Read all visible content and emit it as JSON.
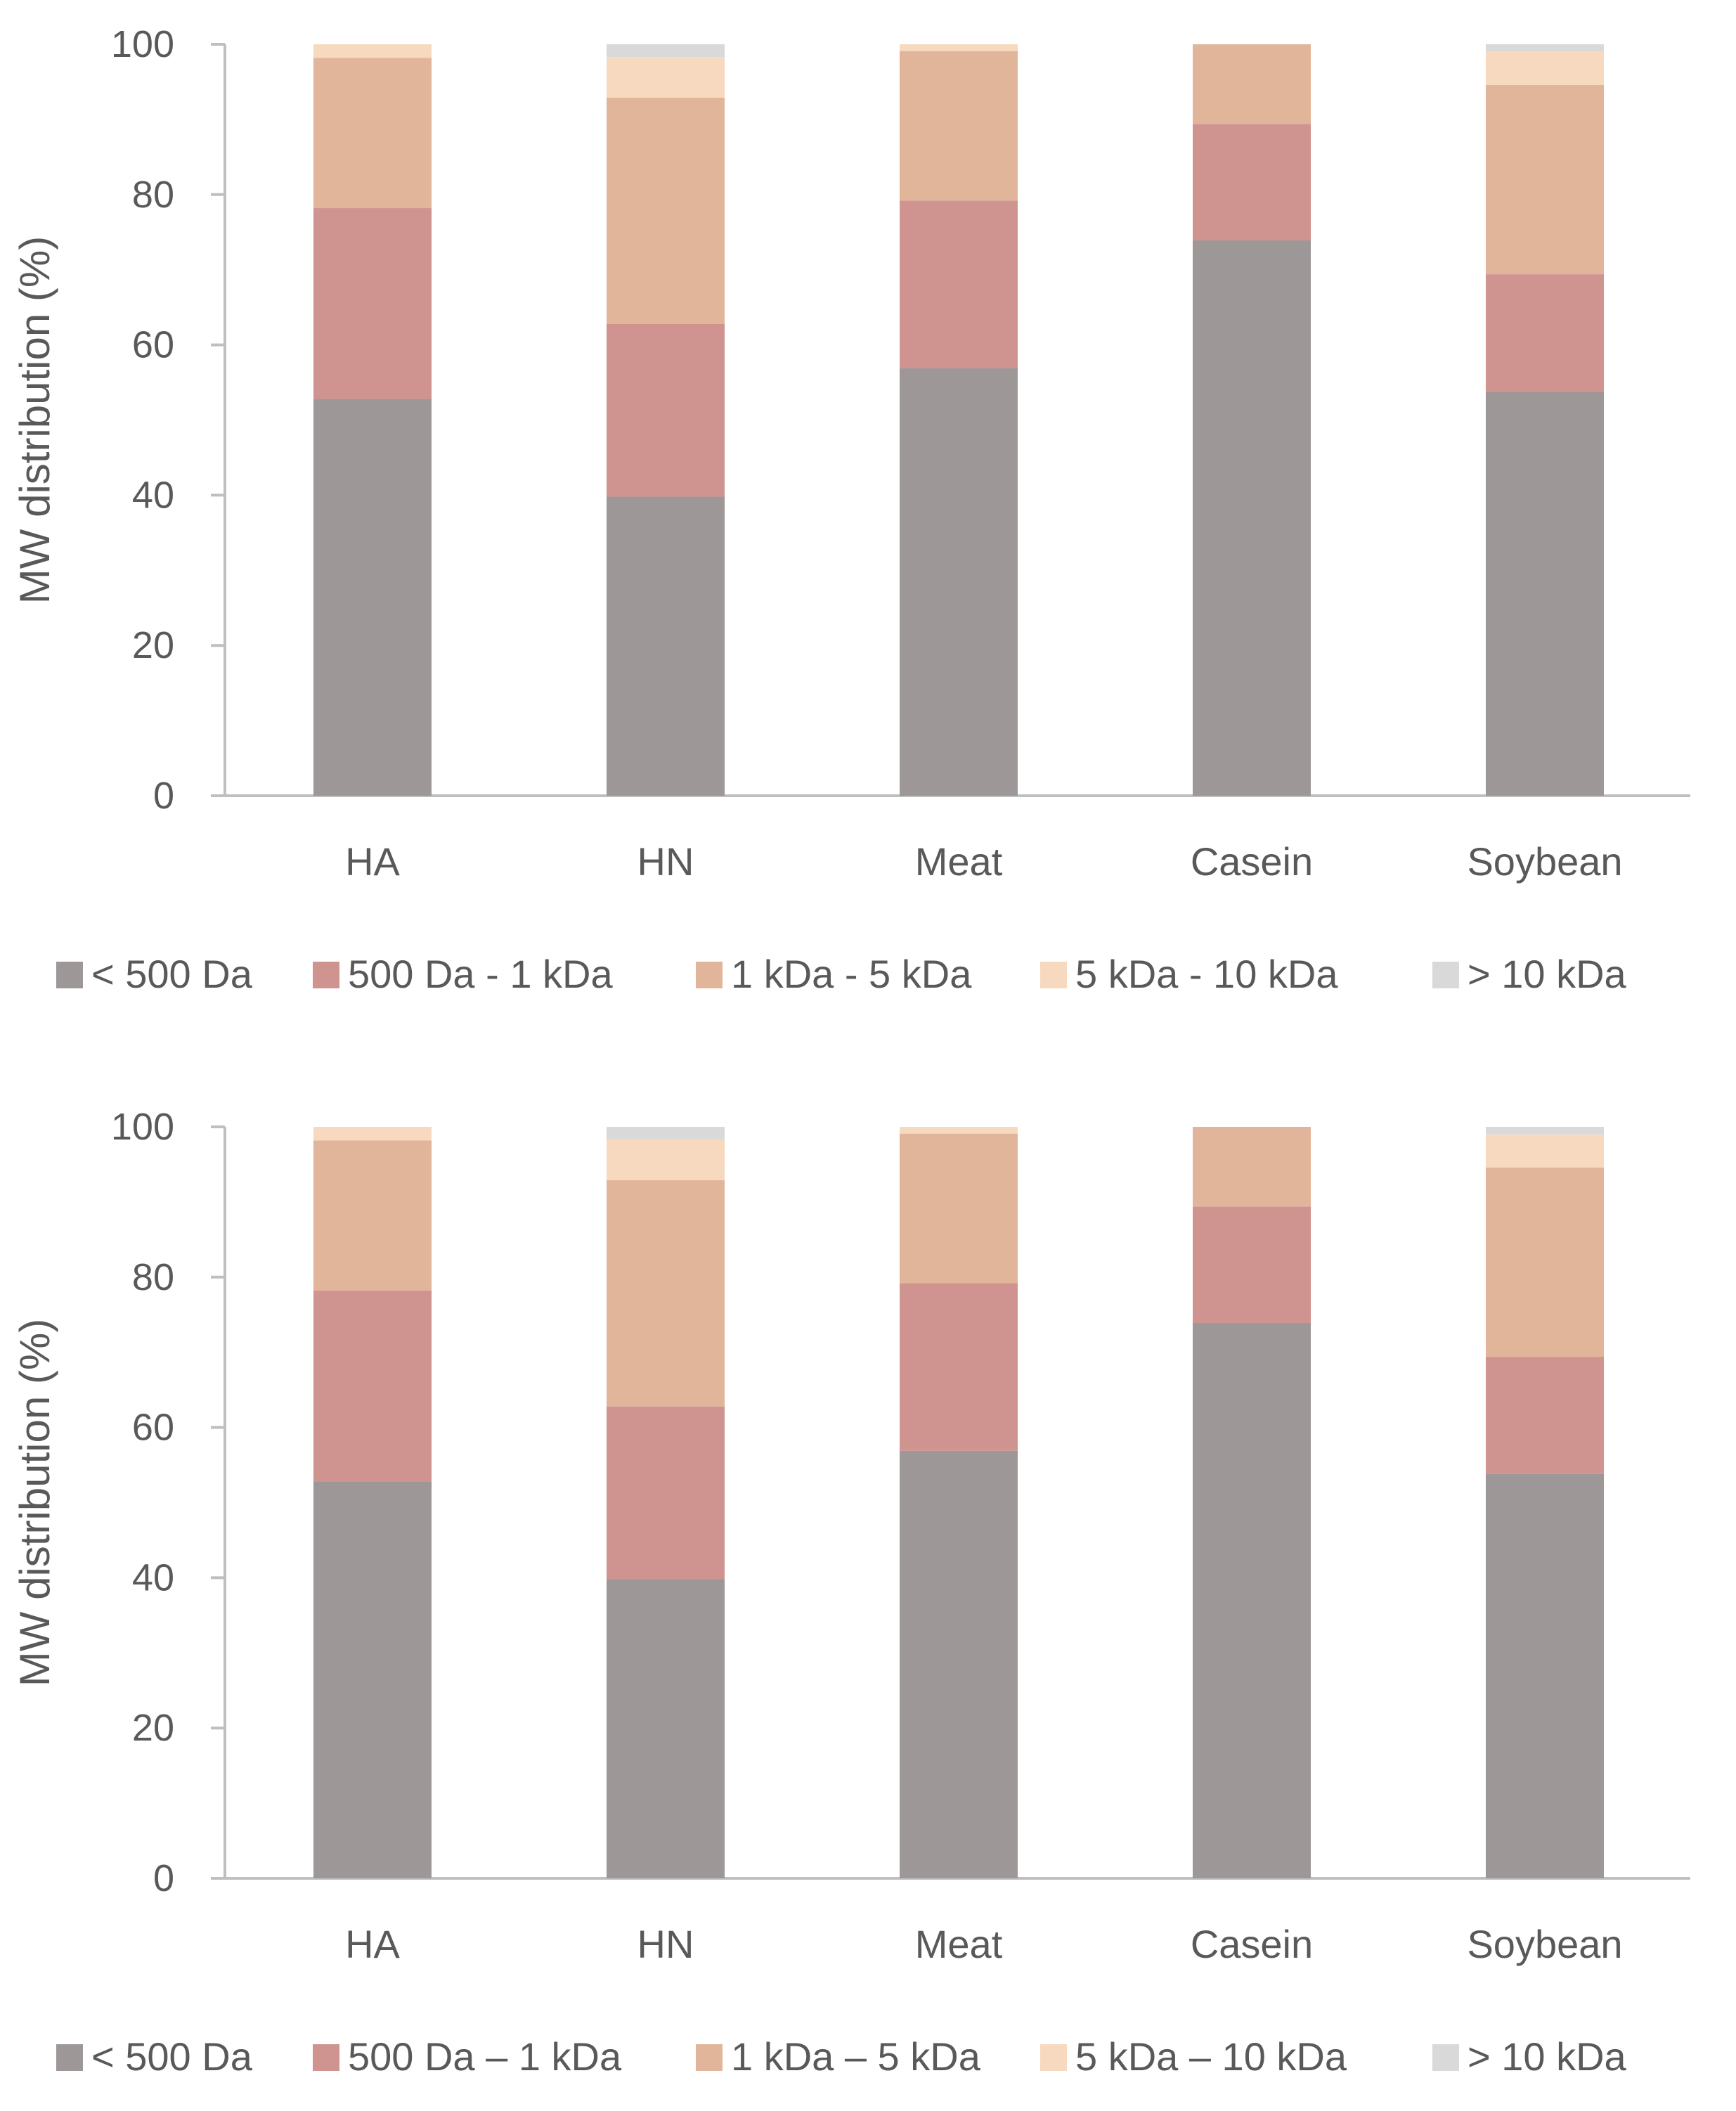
{
  "chart_data": [
    {
      "type": "bar",
      "stacked": true,
      "title": "",
      "xlabel": "",
      "ylabel": "MW distribution (%)",
      "ylim": [
        0,
        100
      ],
      "yticks": [
        "0",
        "20",
        "40",
        "60",
        "80",
        "100"
      ],
      "categories": [
        "HA",
        "HN",
        "Meat",
        "Casein",
        "Soybean"
      ],
      "grid": false,
      "legend_position": "bottom",
      "series": [
        {
          "name": "< 500 Da",
          "color": "#9e9797",
          "values": [
            52.8,
            39.8,
            56.9,
            73.9,
            53.8
          ]
        },
        {
          "name": "500 Da - 1 kDa",
          "color": "#cf9390",
          "values": [
            25.4,
            23.0,
            22.3,
            15.5,
            15.6
          ]
        },
        {
          "name": "1 kDa - 5 kDa",
          "color": "#e0b59a",
          "values": [
            20.0,
            30.1,
            19.9,
            10.6,
            25.2
          ]
        },
        {
          "name": "5 kDa - 10 kDa",
          "color": "#f6d9be",
          "values": [
            1.8,
            5.4,
            0.9,
            0.0,
            4.4
          ]
        },
        {
          "name": "> 10 kDa",
          "color": "#d9d9d9",
          "values": [
            0.0,
            1.7,
            0.0,
            0.0,
            1.0
          ]
        }
      ]
    },
    {
      "type": "bar",
      "stacked": true,
      "title": "",
      "xlabel": "",
      "ylabel": "MW distribution (%)",
      "ylim": [
        0,
        100
      ],
      "yticks": [
        "0",
        "20",
        "40",
        "60",
        "80",
        "100"
      ],
      "categories": [
        "HA",
        "HN",
        "Meat",
        "Casein",
        "Soybean"
      ],
      "grid": false,
      "legend_position": "bottom",
      "series": [
        {
          "name": "< 500 Da",
          "color": "#9e9797",
          "values": [
            52.8,
            39.8,
            56.9,
            73.9,
            53.8
          ]
        },
        {
          "name": "500 Da – 1 kDa",
          "color": "#cf9390",
          "values": [
            25.4,
            23.0,
            22.3,
            15.5,
            15.6
          ]
        },
        {
          "name": "1 kDa – 5 kDa",
          "color": "#e0b59a",
          "values": [
            20.0,
            30.1,
            19.9,
            10.6,
            25.2
          ]
        },
        {
          "name": "5 kDa – 10 kDa",
          "color": "#f6d9be",
          "values": [
            1.8,
            5.4,
            0.9,
            0.0,
            4.4
          ]
        },
        {
          "name": "> 10 kDa",
          "color": "#d9d9d9",
          "values": [
            0.0,
            1.7,
            0.0,
            0.0,
            1.0
          ]
        }
      ]
    }
  ]
}
